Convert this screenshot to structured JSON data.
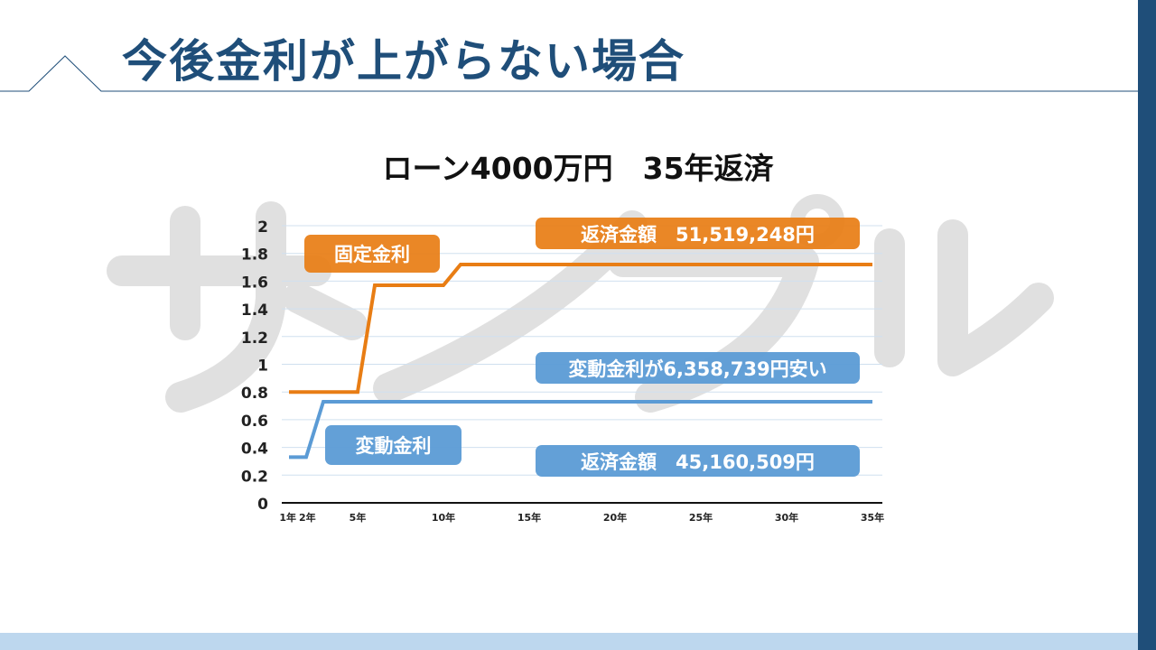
{
  "slide": {
    "title": "今後金利が上がらない場合",
    "watermark": "サンプル"
  },
  "colors": {
    "fixed": "#e87d14",
    "variable": "#5b9bd5",
    "accent": "#1f4e79"
  },
  "labels": {
    "fixed_rate": "固定金利",
    "variable_rate": "変動金利",
    "fixed_total": "返済金額　51,519,248円",
    "variable_total": "返済金額　45,160,509円",
    "difference": "変動金利が6,358,739円安い"
  },
  "chart_data": {
    "type": "line",
    "title": "ローン4000万円　35年返済",
    "xlabel": "",
    "ylabel": "",
    "ylim": [
      0,
      2
    ],
    "xlim": [
      1,
      35
    ],
    "yticks": [
      0,
      0.2,
      0.4,
      0.6,
      0.8,
      1,
      1.2,
      1.4,
      1.6,
      1.8,
      2
    ],
    "ytick_labels": [
      "0",
      "0.2",
      "0.4",
      "0.6",
      "0.8",
      "1",
      "1.2",
      "1.4",
      "1.6",
      "1.8",
      "2"
    ],
    "xticks": [
      {
        "x": 1,
        "label": "1年"
      },
      {
        "x": 2,
        "label": "2年"
      },
      {
        "x": 5,
        "label": "5年"
      },
      {
        "x": 10,
        "label": "10年"
      },
      {
        "x": 15,
        "label": "15年"
      },
      {
        "x": 20,
        "label": "20年"
      },
      {
        "x": 25,
        "label": "25年"
      },
      {
        "x": 30,
        "label": "30年"
      },
      {
        "x": 35,
        "label": "35年"
      }
    ],
    "grid": true,
    "series": [
      {
        "name": "固定金利",
        "color": "#e87d14",
        "points": [
          [
            1,
            0.8
          ],
          [
            5,
            0.8
          ],
          [
            6,
            1.57
          ],
          [
            10,
            1.57
          ],
          [
            11,
            1.72
          ],
          [
            35,
            1.72
          ]
        ]
      },
      {
        "name": "変動金利",
        "color": "#5b9bd5",
        "points": [
          [
            1,
            0.33
          ],
          [
            2,
            0.33
          ],
          [
            3,
            0.73
          ],
          [
            35,
            0.73
          ]
        ]
      }
    ]
  }
}
